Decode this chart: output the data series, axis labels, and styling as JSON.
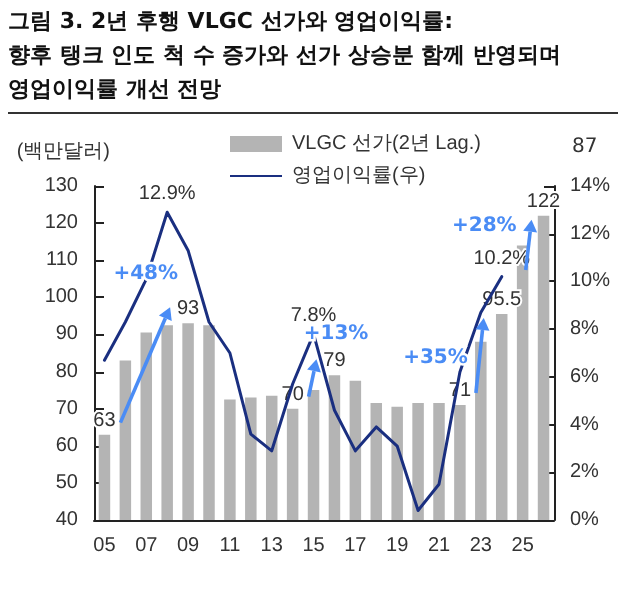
{
  "chart_data": {
    "type": "bar",
    "title": "그림 3. 2년 후행 VLGC 선가와 영업이익률:\n향후 탱크 인도 척 수 증가와 선가 상승분 함께 반영되며\n영업이익률 개선 전망",
    "ylabel": "(백만달러)",
    "categories": [
      "05",
      null,
      "07",
      null,
      "09",
      null,
      "11",
      null,
      "13",
      null,
      "15",
      null,
      "17",
      null,
      "19",
      null,
      "21",
      null,
      "23",
      null,
      "25",
      null
    ],
    "series": [
      {
        "name": "VLGC 선가(2년 Lag.)",
        "color": "#b4b4b4",
        "values": [
          63,
          83,
          90.5,
          92.5,
          93,
          92.5,
          72.5,
          73,
          73.5,
          70,
          75,
          79,
          77.5,
          71.5,
          70.5,
          71.5,
          71.5,
          71,
          88,
          95.5,
          114,
          122
        ],
        "value_labels": [
          "63",
          null,
          null,
          null,
          "93",
          null,
          null,
          null,
          null,
          "70",
          null,
          "79",
          null,
          null,
          null,
          null,
          null,
          "71",
          null,
          "95.5",
          null,
          "122"
        ]
      },
      {
        "name": "영업이익률(우)",
        "type": "line",
        "axis": "y2",
        "color": "#1a2f80",
        "values": [
          6.7,
          8.3,
          10.1,
          12.9,
          11.3,
          8.3,
          7.0,
          3.6,
          2.9,
          5.7,
          7.8,
          4.6,
          2.9,
          3.9,
          3.1,
          0.4,
          1.5,
          6.2,
          8.7,
          10.2,
          null,
          null
        ],
        "value_labels": [
          null,
          null,
          null,
          "12.9%",
          null,
          null,
          null,
          null,
          null,
          null,
          "7.8%",
          null,
          null,
          null,
          null,
          null,
          null,
          null,
          null,
          "10.2%",
          null,
          null
        ]
      }
    ],
    "ylim": [
      40,
      130
    ],
    "yticks": [
      40,
      50,
      60,
      70,
      80,
      90,
      100,
      110,
      120,
      130
    ],
    "y2lim": [
      0,
      14
    ],
    "y2ticks": [
      {
        "value": 0,
        "label": "0%"
      },
      {
        "value": 2,
        "label": "2%"
      },
      {
        "value": 4,
        "label": "4%"
      },
      {
        "value": 6,
        "label": "6%"
      },
      {
        "value": 8,
        "label": "8%"
      },
      {
        "value": 10,
        "label": "10%"
      },
      {
        "value": 12,
        "label": "12%"
      },
      {
        "value": 14,
        "label": "14%"
      }
    ],
    "annotations": [
      {
        "text": "+48%",
        "y": 93
      },
      {
        "text": "+13%",
        "y": 79
      },
      "+35%",
      "+28%",
      "87"
    ],
    "grid": false,
    "legend": "top",
    "marker": "none",
    "line_style": "solid"
  }
}
